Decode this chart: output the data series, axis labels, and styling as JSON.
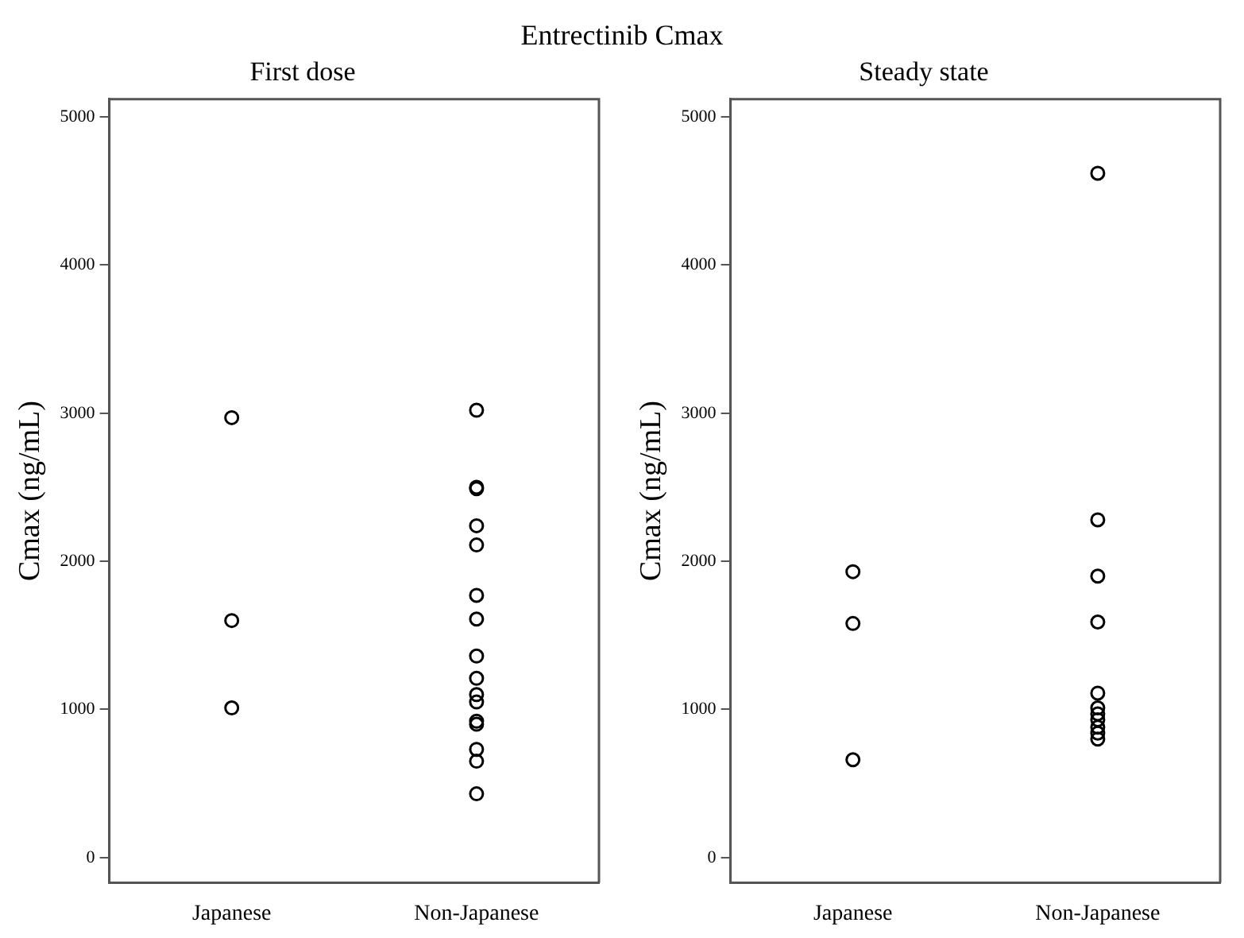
{
  "chart_data": [
    {
      "type": "scatter",
      "title": "First dose",
      "ylabel": "Cmax (ng/mL)",
      "annotations": [
        "Entrectinib Cmax"
      ],
      "categories": [
        "Japanese",
        "Non-Japanese"
      ],
      "marker": "circle",
      "grid": false,
      "ylim": [
        -170,
        5120
      ],
      "yticks": [
        0,
        1000,
        2000,
        3000,
        4000,
        5000
      ],
      "series": [
        {
          "color": "#000000",
          "x": [
            "Japanese",
            "Japanese",
            "Japanese",
            "Non-Japanese",
            "Non-Japanese",
            "Non-Japanese",
            "Non-Japanese",
            "Non-Japanese",
            "Non-Japanese",
            "Non-Japanese",
            "Non-Japanese",
            "Non-Japanese",
            "Non-Japanese",
            "Non-Japanese",
            "Non-Japanese",
            "Non-Japanese",
            "Non-Japanese",
            "Non-Japanese",
            "Non-Japanese"
          ],
          "values": [
            2970,
            1600,
            1010,
            3020,
            2500,
            2490,
            2240,
            2110,
            1770,
            1610,
            1360,
            1210,
            1100,
            1050,
            920,
            900,
            730,
            650,
            430
          ]
        }
      ]
    },
    {
      "type": "scatter",
      "title": "Steady state",
      "ylabel": "Cmax (ng/mL)",
      "categories": [
        "Japanese",
        "Non-Japanese"
      ],
      "marker": "circle",
      "grid": false,
      "ylim": [
        -170,
        5120
      ],
      "yticks": [
        0,
        1000,
        2000,
        3000,
        4000,
        5000
      ],
      "series": [
        {
          "color": "#000000",
          "x": [
            "Japanese",
            "Japanese",
            "Japanese",
            "Non-Japanese",
            "Non-Japanese",
            "Non-Japanese",
            "Non-Japanese",
            "Non-Japanese",
            "Non-Japanese",
            "Non-Japanese",
            "Non-Japanese",
            "Non-Japanese",
            "Non-Japanese",
            "Non-Japanese"
          ],
          "values": [
            1930,
            1580,
            660,
            4620,
            2280,
            1900,
            1590,
            1110,
            1010,
            970,
            930,
            880,
            840,
            800
          ]
        }
      ]
    }
  ]
}
